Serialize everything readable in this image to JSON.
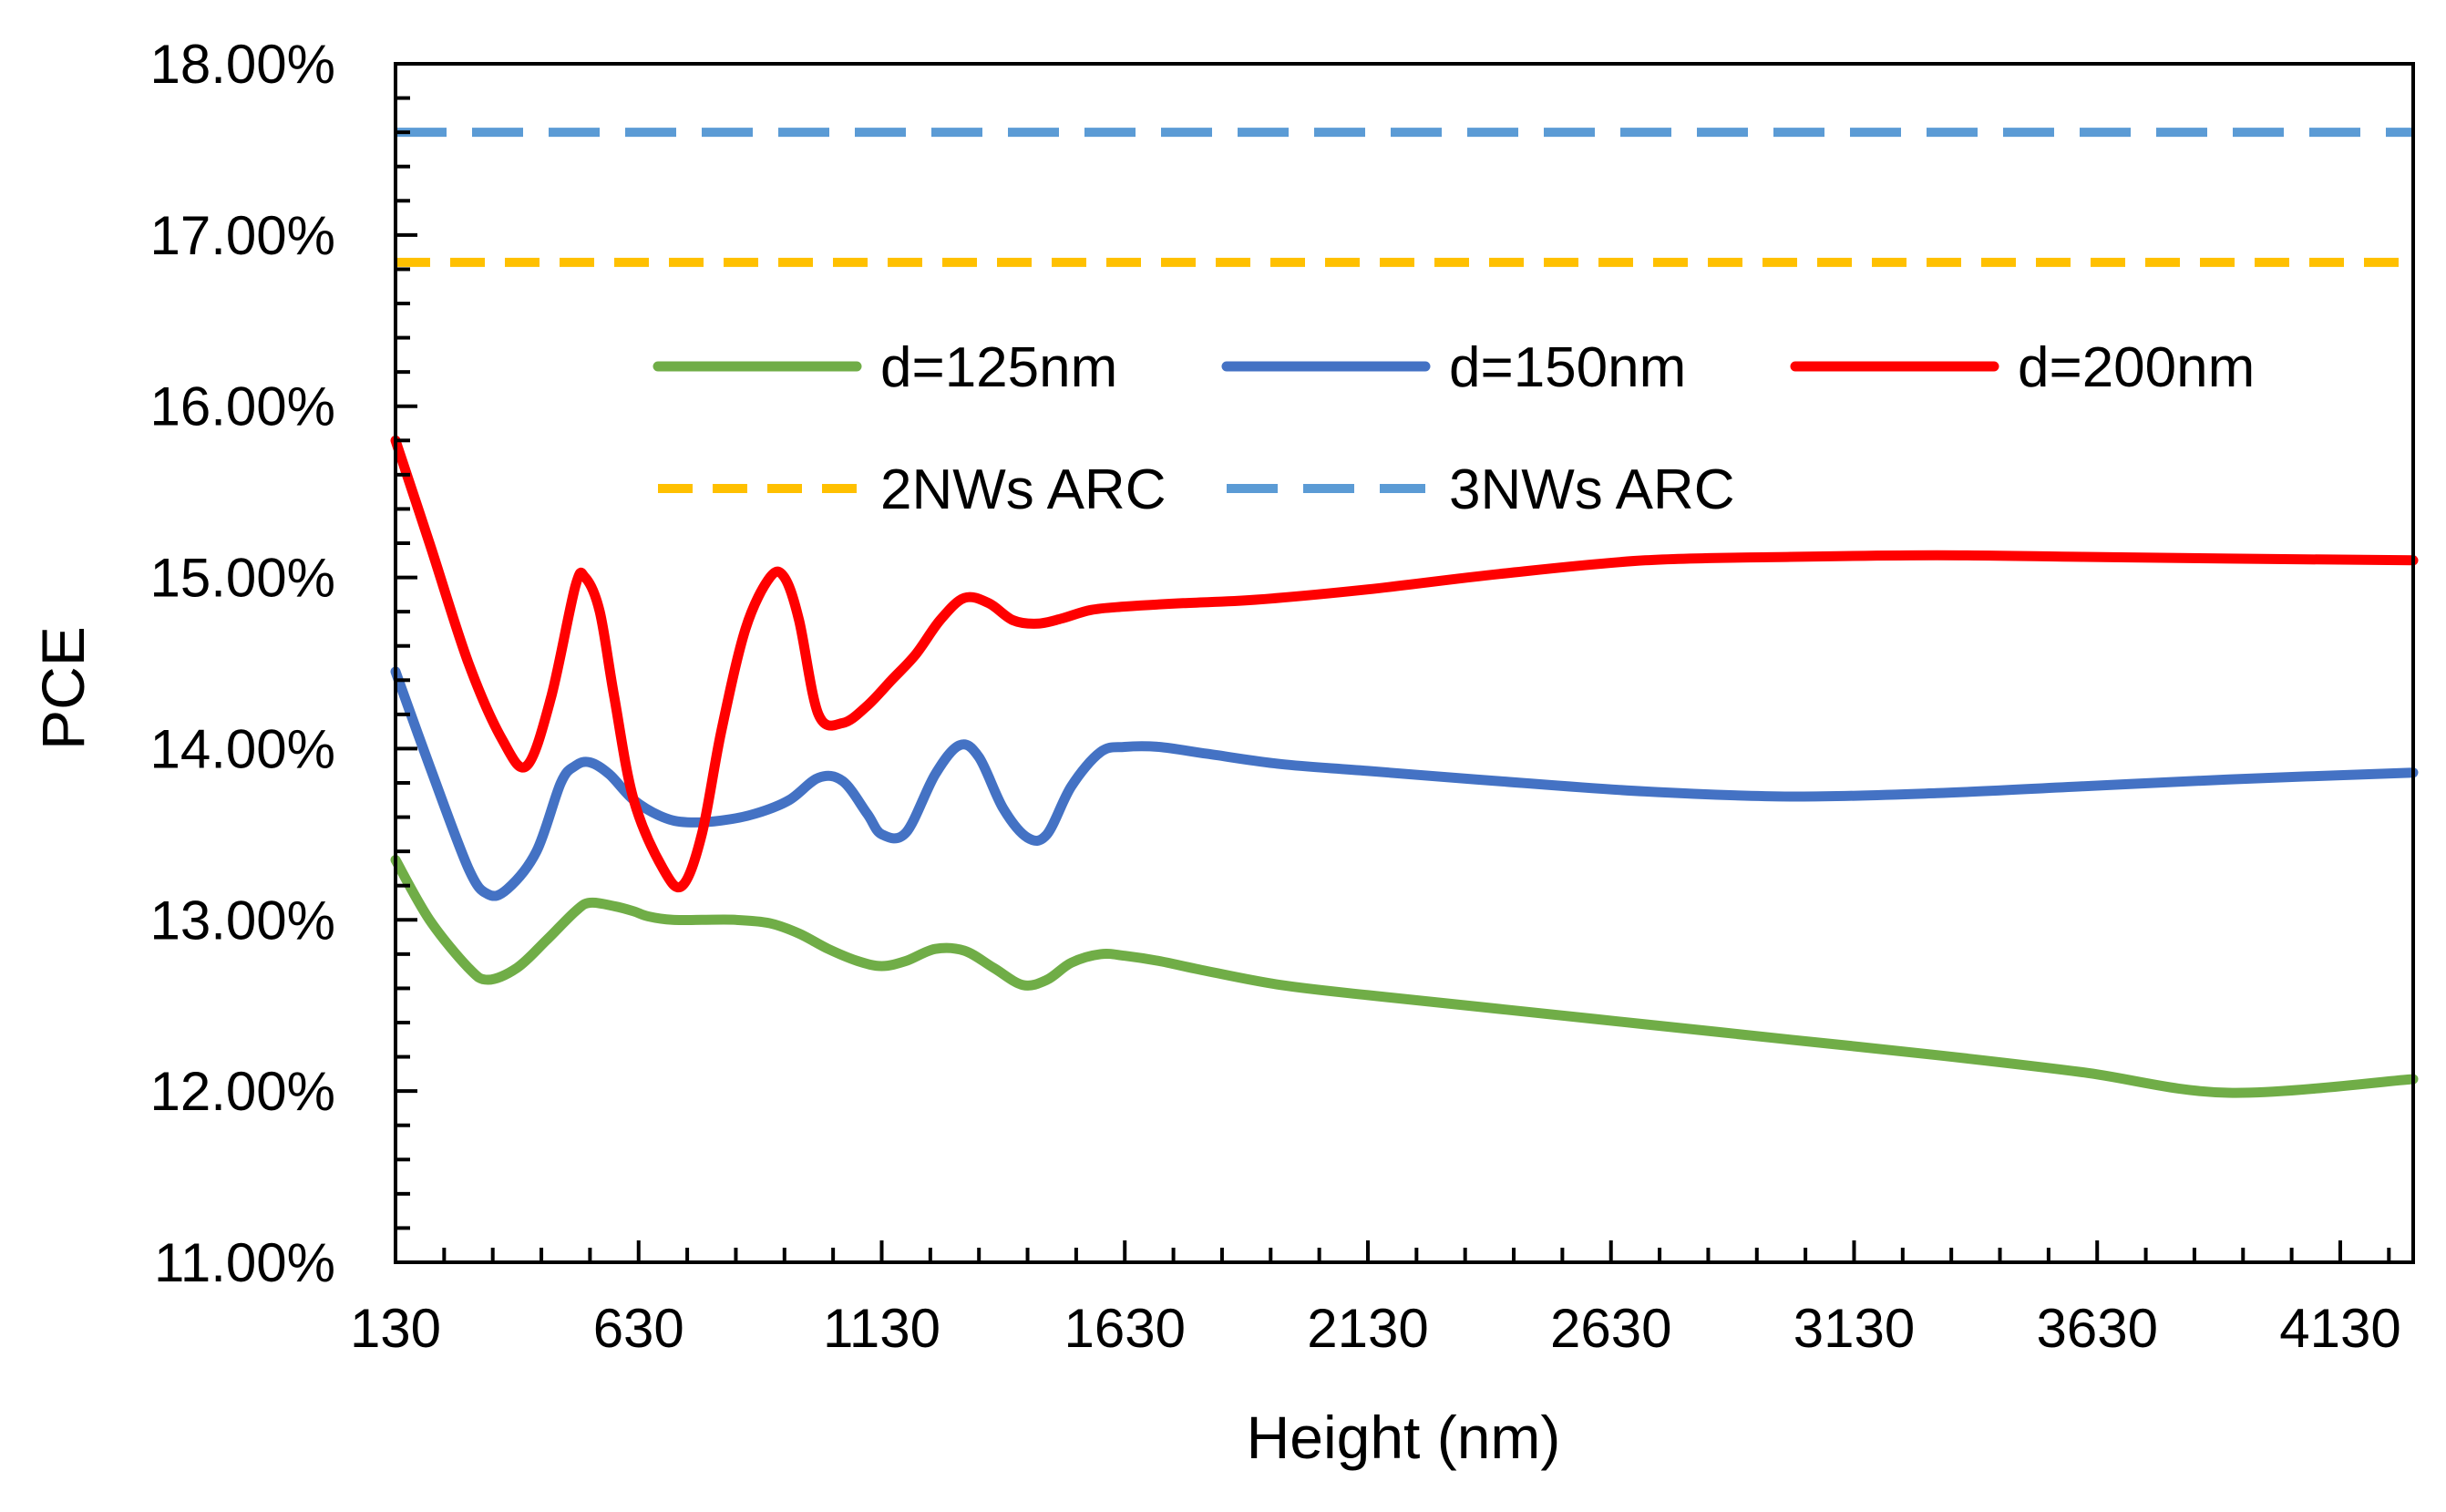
{
  "chart_data": {
    "type": "line",
    "title": "",
    "xlabel": "Height (nm)",
    "ylabel": "PCE",
    "xlim": [
      130,
      4280
    ],
    "ylim": [
      0.11,
      0.18
    ],
    "x_ticks": [
      130,
      630,
      1130,
      1630,
      2130,
      2630,
      3130,
      3630,
      4130
    ],
    "x_tick_labels": [
      "130",
      "630",
      "1130",
      "1630",
      "2130",
      "2630",
      "3130",
      "3630",
      "4130"
    ],
    "y_ticks": [
      0.11,
      0.12,
      0.13,
      0.14,
      0.15,
      0.16,
      0.17,
      0.18
    ],
    "y_tick_labels": [
      "11.00%",
      "12.00%",
      "13.00%",
      "14.00%",
      "15.00%",
      "16.00%",
      "17.00%",
      "18.00%"
    ],
    "grid": false,
    "legend_position": "inside-top",
    "series": [
      {
        "name": "d=125nm",
        "color": "#70AD47",
        "style": "solid",
        "x": [
          130,
          200,
          280,
          320,
          380,
          440,
          500,
          530,
          580,
          620,
          650,
          700,
          760,
          830,
          900,
          960,
          1020,
          1080,
          1130,
          1180,
          1240,
          1300,
          1360,
          1420,
          1470,
          1520,
          1580,
          1630,
          1700,
          1800,
          1950,
          2130,
          2400,
          2700,
          3000,
          3300,
          3600,
          3900,
          4280
        ],
        "values": [
          0.1335,
          0.13,
          0.1272,
          0.1265,
          0.1272,
          0.1288,
          0.1305,
          0.131,
          0.1308,
          0.1305,
          0.1302,
          0.13,
          0.13,
          0.13,
          0.1298,
          0.1292,
          0.1283,
          0.1276,
          0.1273,
          0.1276,
          0.1283,
          0.1282,
          0.1272,
          0.1262,
          0.1265,
          0.1275,
          0.128,
          0.1279,
          0.1276,
          0.127,
          0.1262,
          0.1256,
          0.1248,
          0.1239,
          0.123,
          0.1221,
          0.1211,
          0.1199,
          0.1207
        ]
      },
      {
        "name": "d=150nm",
        "color": "#4472C4",
        "style": "solid",
        "x": [
          130,
          200,
          280,
          320,
          360,
          420,
          470,
          500,
          530,
          570,
          620,
          680,
          730,
          800,
          870,
          940,
          1000,
          1050,
          1100,
          1130,
          1180,
          1240,
          1290,
          1330,
          1380,
          1430,
          1470,
          1520,
          1580,
          1630,
          1700,
          1800,
          1950,
          2130,
          2400,
          2700,
          3000,
          3300,
          3600,
          3900,
          4280
        ],
        "values": [
          0.1445,
          0.139,
          0.133,
          0.1315,
          0.1318,
          0.134,
          0.138,
          0.139,
          0.1392,
          0.1385,
          0.137,
          0.136,
          0.1357,
          0.1358,
          0.1362,
          0.137,
          0.1383,
          0.1381,
          0.1362,
          0.135,
          0.1351,
          0.1385,
          0.1402,
          0.1395,
          0.1365,
          0.1348,
          0.135,
          0.1378,
          0.1398,
          0.1401,
          0.1401,
          0.1397,
          0.1391,
          0.1387,
          0.1381,
          0.1375,
          0.1372,
          0.1374,
          0.1378,
          0.1382,
          0.1386
        ]
      },
      {
        "name": "d=200nm",
        "color": "#FF0000",
        "style": "solid",
        "x": [
          130,
          200,
          280,
          350,
          400,
          450,
          500,
          520,
          550,
          580,
          620,
          680,
          720,
          760,
          800,
          850,
          900,
          930,
          960,
          1000,
          1050,
          1100,
          1150,
          1200,
          1250,
          1300,
          1350,
          1400,
          1450,
          1500,
          1560,
          1630,
          1750,
          1900,
          2130,
          2400,
          2700,
          3000,
          3300,
          3600,
          3900,
          4280
        ],
        "values": [
          0.158,
          0.152,
          0.145,
          0.1405,
          0.139,
          0.143,
          0.1495,
          0.15,
          0.148,
          0.143,
          0.137,
          0.133,
          0.132,
          0.135,
          0.141,
          0.147,
          0.15,
          0.15,
          0.1475,
          0.142,
          0.1415,
          0.1425,
          0.144,
          0.1455,
          0.1475,
          0.1488,
          0.1485,
          0.1475,
          0.1473,
          0.1476,
          0.1481,
          0.1483,
          0.1485,
          0.1487,
          0.1493,
          0.1502,
          0.151,
          0.1512,
          0.1513,
          0.1512,
          0.1511,
          0.151
        ]
      },
      {
        "name": "2NWs ARC",
        "color": "#FFC000",
        "style": "dashed",
        "x": [
          130,
          4280
        ],
        "values": [
          0.1684,
          0.1684
        ]
      },
      {
        "name": "3NWs ARC",
        "color": "#5B9BD5",
        "style": "dashed",
        "x": [
          130,
          4280
        ],
        "values": [
          0.176,
          0.176
        ]
      }
    ]
  }
}
